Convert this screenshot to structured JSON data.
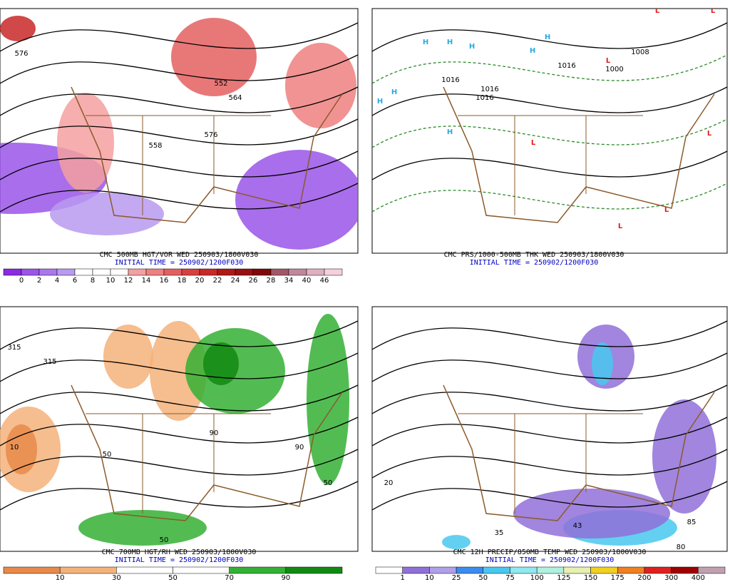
{
  "panels": [
    {
      "title": "CMC 500MB HGT/VOR WED 250903/1800V030",
      "init": "INITIAL TIME = 250902/1200F030",
      "scale": {
        "labels": [
          "0",
          "2",
          "4",
          "6",
          "8",
          "10",
          "12",
          "14",
          "16",
          "18",
          "20",
          "22",
          "24",
          "26",
          "28",
          "34",
          "40",
          "46"
        ],
        "colors": [
          "#8a2be2",
          "#9a55e8",
          "#a978ec",
          "#b99af0",
          "#ffffff",
          "#ffffff",
          "#ffffff",
          "#f4a0a0",
          "#ee8080",
          "#e46060",
          "#d84040",
          "#c82828",
          "#b01818",
          "#981010",
          "#800808",
          "#a05868",
          "#c08898",
          "#e0b0c0",
          "#f4d0dc"
        ]
      },
      "map_labels": [
        "576",
        "564",
        "576",
        "558",
        "552"
      ]
    },
    {
      "title": "CMC PRS/1000-500MB THK WED 250903/1800V030",
      "init": "INITIAL TIME = 250902/1200F030",
      "scale": null,
      "map_labels": [
        "H",
        "H",
        "H",
        "H",
        "H",
        "H",
        "H",
        "H",
        "L",
        "L",
        "L",
        "L",
        "L",
        "L",
        "L",
        "1016",
        "1008",
        "1000",
        "1016",
        "1016",
        "1016"
      ]
    },
    {
      "title": "CMC 700MB HGT/RH WED 250903/1800V030",
      "init": "INITIAL TIME = 250902/1200F030",
      "scale": {
        "labels": [
          "10",
          "30",
          "50",
          "70",
          "90"
        ],
        "colors": [
          "#e8894a",
          "#f4b27a",
          "#ffffff",
          "#ffffff",
          "#34b034",
          "#128a12"
        ]
      },
      "map_labels": [
        "315",
        "10",
        "50",
        "90",
        "50",
        "315",
        "50",
        "90"
      ]
    },
    {
      "title": "CMC 12H PRECIP/850MB TEMP WED 250903/1800V030",
      "init": "INITIAL TIME = 250902/1200F030",
      "scale": {
        "labels": [
          "1",
          "10",
          "25",
          "50",
          "75",
          "100",
          "125",
          "150",
          "175",
          "200",
          "300",
          "400"
        ],
        "colors": [
          "#ffffff",
          "#9070d8",
          "#b0a0e8",
          "#3c8cf0",
          "#48c8f0",
          "#90e8f0",
          "#b0f0e0",
          "#e8f0b0",
          "#f0d020",
          "#f08020",
          "#e02020",
          "#a00000",
          "#c0a0b0"
        ]
      },
      "map_labels": [
        "20",
        "35",
        "43",
        "80",
        "85"
      ]
    }
  ]
}
